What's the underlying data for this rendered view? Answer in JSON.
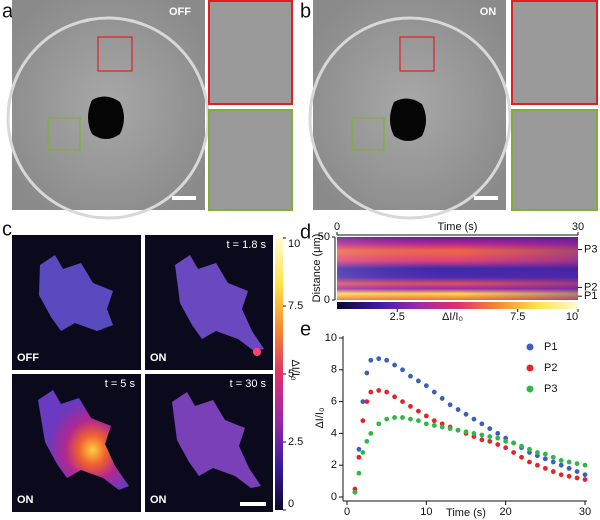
{
  "figure": {
    "panel_labels": [
      "a",
      "b",
      "c",
      "d",
      "e"
    ],
    "panel_a_state": "OFF",
    "panel_b_state": "ON",
    "panel_c_images": [
      {
        "state": "OFF"
      },
      {
        "state": "ON",
        "time": "t = 1.8 s"
      },
      {
        "state": "ON",
        "time": "t = 5 s"
      },
      {
        "state": "ON",
        "time": "t = 30 s"
      }
    ]
  },
  "chart_data": [
    {
      "type": "colorbar",
      "label": "ΔI/I₀",
      "ylim": [
        0,
        10
      ],
      "yticks": [
        0,
        2.5,
        5,
        7.5,
        10
      ],
      "colormap": [
        "#0c0630",
        "#3a1ca0",
        "#9a2aa8",
        "#e0306a",
        "#f58a30",
        "#ffe34a",
        "#fffbd0"
      ]
    },
    {
      "type": "heatmap",
      "xlabel": "Time (s)",
      "ylabel": "Distance (μm)",
      "xlim": [
        0,
        30
      ],
      "xticks": [
        0,
        30
      ],
      "ylim": [
        0,
        50
      ],
      "yticks": [
        0,
        50
      ],
      "annotations": [
        {
          "text": "P3",
          "y": 40
        },
        {
          "text": "P2",
          "y": 10
        },
        {
          "text": "P1",
          "y": 3
        }
      ],
      "colorbar": {
        "label": "ΔI/I₀",
        "lim": [
          0,
          10
        ],
        "ticks": [
          2.5,
          7.5,
          10
        ]
      }
    },
    {
      "type": "scatter",
      "xlabel": "Time (s)",
      "ylabel": "ΔI/I₀",
      "xlim": [
        0,
        30
      ],
      "xticks": [
        0,
        10,
        20,
        30
      ],
      "ylim": [
        0,
        10
      ],
      "yticks": [
        0,
        2,
        4,
        6,
        8,
        10
      ],
      "legend": "upper right",
      "x": [
        1,
        1.5,
        2,
        2.5,
        3,
        4,
        5,
        6,
        7,
        8,
        9,
        10,
        11,
        12,
        13,
        14,
        15,
        16,
        17,
        18,
        19,
        20,
        21,
        22,
        23,
        24,
        25,
        26,
        27,
        28,
        29,
        30
      ],
      "series": [
        {
          "name": "P1",
          "color": "#3a5fbf",
          "values": [
            0.3,
            3,
            6,
            7.8,
            8.6,
            8.7,
            8.6,
            8.3,
            8.0,
            7.6,
            7.3,
            7.0,
            6.6,
            6.2,
            5.8,
            5.5,
            5.2,
            4.9,
            4.6,
            4.3,
            4.0,
            3.7,
            3.4,
            3.1,
            2.8,
            2.6,
            2.4,
            2.2,
            2.0,
            1.8,
            1.6,
            1.4
          ]
        },
        {
          "name": "P2",
          "color": "#e2252b",
          "values": [
            0.5,
            2.5,
            4.8,
            6.0,
            6.6,
            6.7,
            6.6,
            6.3,
            6.0,
            5.7,
            5.4,
            5.1,
            4.8,
            4.6,
            4.4,
            4.2,
            4.0,
            3.8,
            3.6,
            3.5,
            3.3,
            3.1,
            2.8,
            2.5,
            2.2,
            2.0,
            1.8,
            1.6,
            1.4,
            1.3,
            1.2,
            1.1
          ]
        },
        {
          "name": "P3",
          "color": "#2eb84a",
          "values": [
            0.3,
            1.5,
            2.8,
            3.5,
            4.0,
            4.6,
            4.9,
            5.0,
            5.0,
            4.9,
            4.8,
            4.6,
            4.5,
            4.4,
            4.3,
            4.2,
            4.1,
            4.0,
            3.9,
            3.8,
            3.7,
            3.5,
            3.4,
            3.2,
            3.0,
            2.8,
            2.7,
            2.5,
            2.3,
            2.2,
            2.1,
            2.0
          ]
        }
      ]
    }
  ]
}
